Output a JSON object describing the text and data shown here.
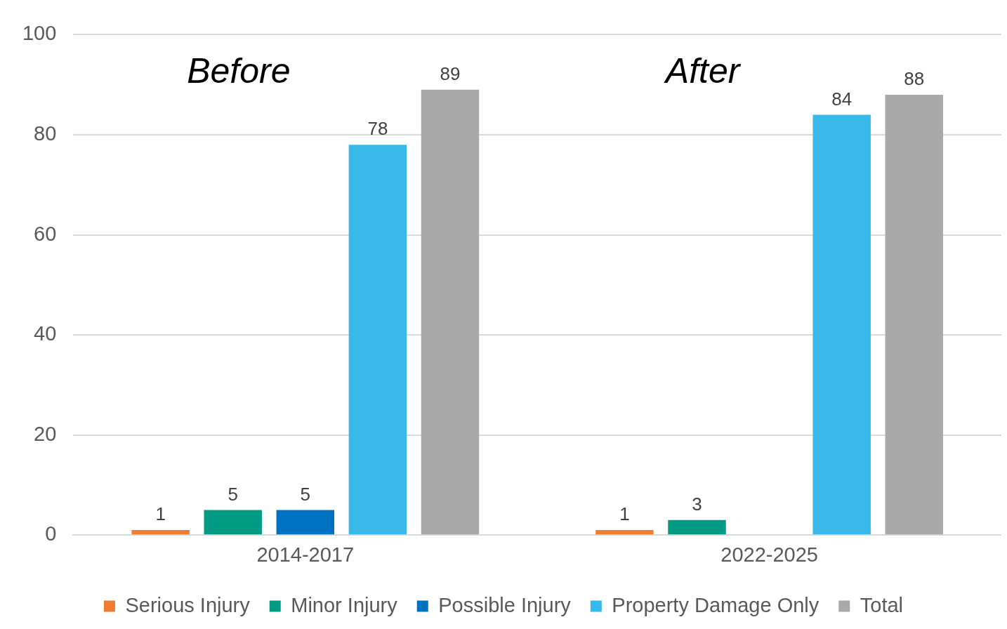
{
  "chart_data": {
    "type": "bar",
    "categories": [
      "2014-2017",
      "2022-2025"
    ],
    "series": [
      {
        "name": "Serious Injury",
        "color": "#ed7d31",
        "values": [
          1,
          1
        ],
        "value_labels": [
          "1",
          "1"
        ]
      },
      {
        "name": "Minor Injury",
        "color": "#009b82",
        "values": [
          5,
          3
        ],
        "value_labels": [
          "5",
          "3"
        ]
      },
      {
        "name": "Possible Injury",
        "color": "#0070c0",
        "values": [
          5,
          null
        ],
        "value_labels": [
          "5",
          null
        ]
      },
      {
        "name": "Property Damage Only",
        "color": "#38b9ea",
        "values": [
          78,
          84
        ],
        "value_labels": [
          "78",
          "84"
        ]
      },
      {
        "name": "Total",
        "color": "#a9a9a9",
        "values": [
          89,
          88
        ],
        "value_labels": [
          "89",
          "88"
        ]
      }
    ],
    "ylim": [
      0,
      100
    ],
    "yticks": [
      0,
      20,
      40,
      60,
      80,
      100
    ],
    "grid": "y",
    "legend": "bottom",
    "annotations": [
      "Before",
      "After"
    ]
  }
}
